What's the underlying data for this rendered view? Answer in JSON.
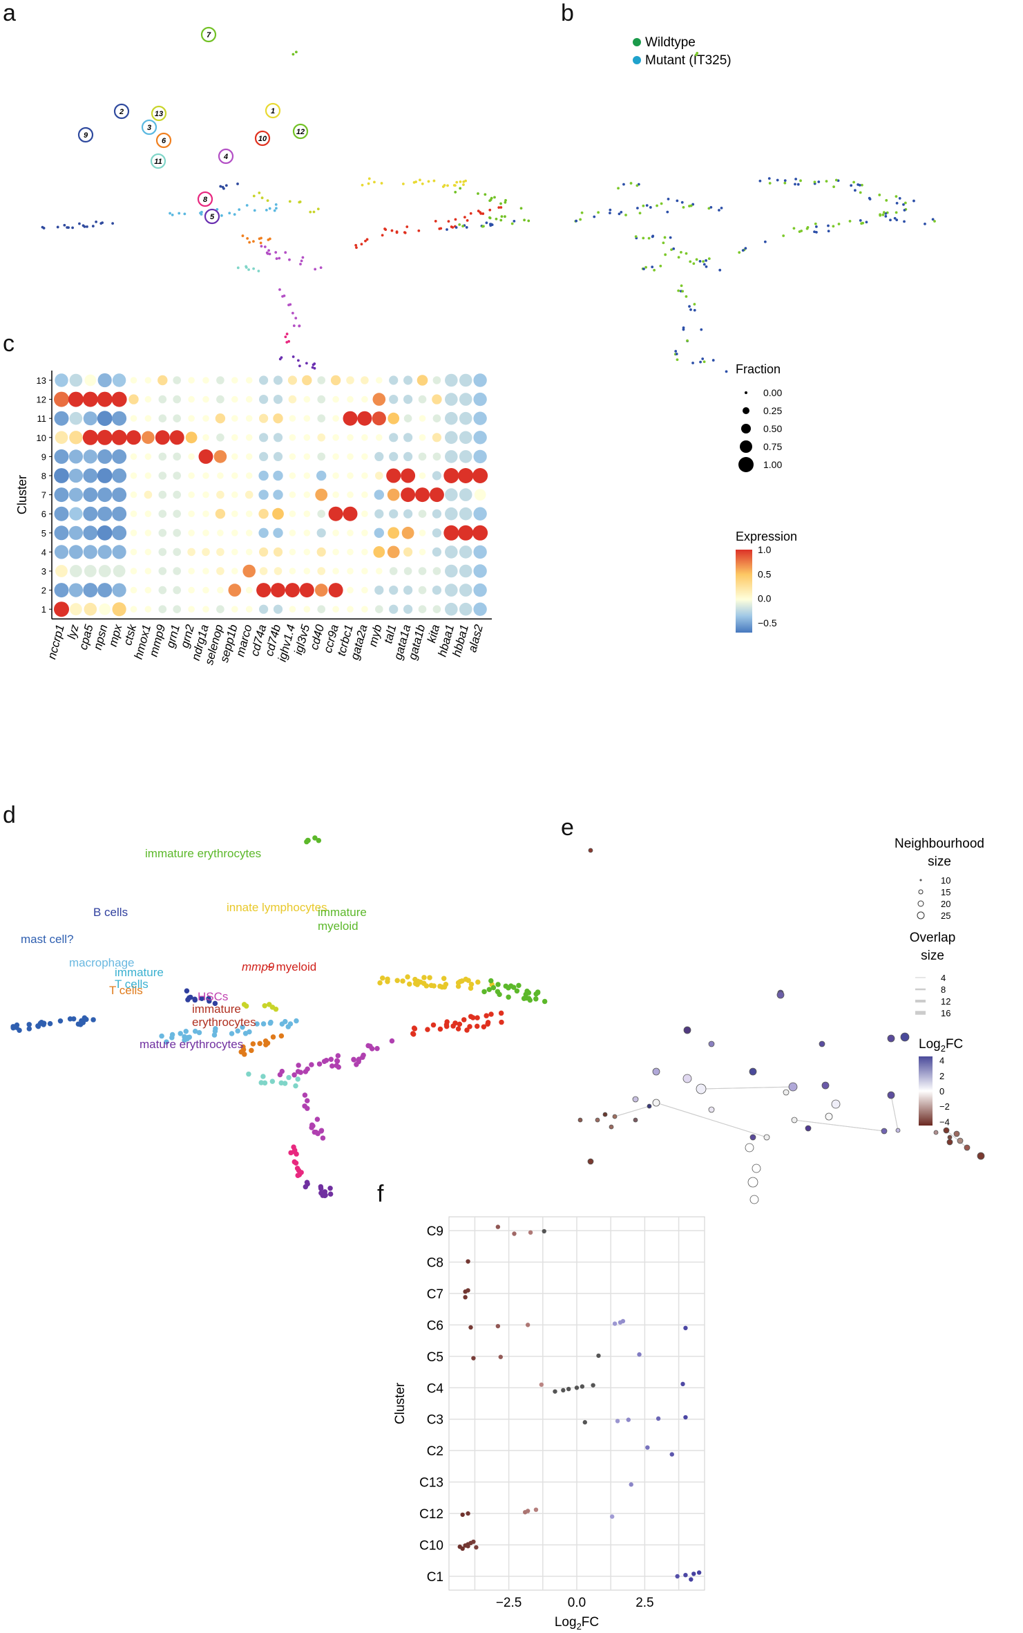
{
  "panels": {
    "a": {
      "letter": "a"
    },
    "b": {
      "letter": "b",
      "legend": [
        {
          "label": "Wildtype",
          "color": "#1a9a4a"
        },
        {
          "label": "Mutant (IT325)",
          "color": "#1fa2cc"
        }
      ]
    },
    "c": {
      "letter": "c"
    },
    "d": {
      "letter": "d"
    },
    "e": {
      "letter": "e"
    },
    "f": {
      "letter": "f"
    }
  },
  "chart_data": [
    {
      "id": "a",
      "type": "scatter",
      "cluster_labels": [
        {
          "n": "1",
          "color": "#e8d932"
        },
        {
          "n": "2",
          "color": "#2f4a9e"
        },
        {
          "n": "3",
          "color": "#5ab8e0"
        },
        {
          "n": "4",
          "color": "#b34fc5"
        },
        {
          "n": "5",
          "color": "#6a2fb0"
        },
        {
          "n": "6",
          "color": "#f07f1e"
        },
        {
          "n": "7",
          "color": "#72c125"
        },
        {
          "n": "8",
          "color": "#e8287f"
        },
        {
          "n": "9",
          "color": "#2f4a9e"
        },
        {
          "n": "10",
          "color": "#e0311f"
        },
        {
          "n": "11",
          "color": "#7fd5c8"
        },
        {
          "n": "12",
          "color": "#72c125"
        },
        {
          "n": "13",
          "color": "#c8d42a"
        }
      ]
    },
    {
      "id": "b",
      "type": "scatter",
      "series": [
        {
          "name": "Wildtype",
          "color": "#7cc82a"
        },
        {
          "name": "Mutant (IT325)",
          "color": "#2c4fa8"
        }
      ]
    },
    {
      "id": "c",
      "type": "dotplot",
      "ylabel": "Cluster",
      "clusters": [
        "13",
        "12",
        "11",
        "10",
        "9",
        "8",
        "7",
        "6",
        "5",
        "4",
        "3",
        "2",
        "1"
      ],
      "genes": [
        "nccrp1",
        "lyz",
        "cpa5",
        "npsn",
        "mpx",
        "ctsk",
        "hmox1",
        "mmp9",
        "grn1",
        "grn2",
        "ndrg1a",
        "selenop",
        "sepp1b",
        "marco",
        "cd74a",
        "cd74b",
        "ighv1.4",
        "igl3v5",
        "cd40",
        "ccr9a",
        "tcrbc1",
        "gata2a",
        "myb",
        "tal1",
        "gata1a",
        "gata1b",
        "kita",
        "hbaa1",
        "hbba1",
        "alas2"
      ],
      "expression": [
        [
          -0.3,
          -0.2,
          0.0,
          -0.4,
          -0.3,
          0.0,
          0.0,
          0.3,
          -0.1,
          0.0,
          0.0,
          -0.1,
          0.0,
          0.0,
          -0.2,
          -0.2,
          0.2,
          0.3,
          -0.1,
          0.3,
          0.1,
          0.1,
          0.0,
          -0.2,
          -0.2,
          0.4,
          -0.1,
          -0.2,
          -0.2,
          -0.3
        ],
        [
          0.8,
          1.0,
          1.0,
          1.0,
          1.0,
          0.3,
          0.0,
          -0.1,
          -0.1,
          0.0,
          0.0,
          -0.1,
          0.0,
          0.0,
          -0.2,
          -0.2,
          0.1,
          0.0,
          -0.1,
          0.0,
          0.0,
          0.0,
          0.7,
          -0.2,
          -0.2,
          -0.1,
          0.3,
          -0.2,
          -0.2,
          -0.3
        ],
        [
          -0.5,
          -0.2,
          -0.4,
          -0.6,
          -0.5,
          0.0,
          0.0,
          -0.1,
          -0.1,
          0.0,
          0.0,
          0.3,
          0.0,
          0.0,
          0.2,
          0.3,
          0.0,
          0.0,
          -0.1,
          0.0,
          1.0,
          1.0,
          0.9,
          0.5,
          -0.1,
          0.0,
          -0.1,
          -0.2,
          -0.2,
          -0.3
        ],
        [
          0.2,
          0.3,
          1.0,
          1.0,
          1.0,
          1.0,
          0.7,
          1.0,
          1.0,
          0.5,
          0.0,
          -0.1,
          0.0,
          0.0,
          -0.2,
          -0.2,
          0.0,
          0.0,
          0.1,
          0.0,
          0.0,
          0.0,
          0.0,
          -0.2,
          -0.2,
          0.0,
          0.2,
          -0.2,
          -0.2,
          -0.3
        ],
        [
          -0.5,
          -0.4,
          -0.4,
          -0.5,
          -0.5,
          0.0,
          0.0,
          -0.1,
          -0.1,
          0.0,
          1.0,
          0.7,
          0.0,
          0.0,
          -0.2,
          -0.2,
          0.0,
          0.0,
          -0.1,
          0.0,
          0.0,
          0.0,
          -0.2,
          -0.2,
          -0.2,
          -0.1,
          -0.1,
          -0.2,
          -0.2,
          -0.3
        ],
        [
          -0.6,
          -0.4,
          -0.5,
          -0.6,
          -0.5,
          0.0,
          0.0,
          -0.1,
          -0.1,
          0.0,
          0.0,
          0.0,
          0.0,
          0.0,
          -0.3,
          -0.3,
          0.0,
          0.0,
          -0.3,
          0.0,
          0.0,
          0.0,
          0.1,
          1.0,
          1.0,
          0.0,
          -0.2,
          1.0,
          1.0,
          1.0
        ],
        [
          -0.5,
          -0.4,
          -0.5,
          -0.5,
          -0.5,
          0.0,
          0.1,
          -0.1,
          -0.1,
          0.0,
          0.0,
          0.1,
          0.0,
          0.1,
          -0.3,
          -0.3,
          0.0,
          0.0,
          0.6,
          0.0,
          0.0,
          0.0,
          -0.3,
          0.6,
          1.0,
          1.0,
          1.0,
          -0.2,
          -0.2,
          0.0
        ],
        [
          -0.5,
          -0.3,
          -0.5,
          -0.5,
          -0.5,
          0.0,
          0.0,
          -0.1,
          -0.1,
          0.0,
          0.0,
          0.3,
          0.0,
          0.0,
          0.3,
          0.5,
          0.0,
          0.0,
          -0.1,
          1.0,
          1.0,
          0.0,
          -0.2,
          -0.2,
          -0.2,
          -0.1,
          -0.2,
          -0.2,
          -0.2,
          -0.3
        ],
        [
          -0.5,
          -0.4,
          -0.5,
          -0.6,
          -0.5,
          0.0,
          0.0,
          -0.1,
          -0.1,
          0.0,
          0.0,
          0.0,
          0.0,
          0.0,
          -0.3,
          -0.3,
          0.0,
          0.0,
          -0.2,
          0.0,
          0.0,
          0.0,
          -0.3,
          0.5,
          0.6,
          0.0,
          -0.2,
          1.0,
          1.0,
          1.0
        ],
        [
          -0.4,
          -0.4,
          -0.4,
          -0.4,
          -0.4,
          0.0,
          0.0,
          -0.1,
          -0.1,
          0.1,
          0.1,
          0.1,
          0.0,
          0.0,
          0.2,
          0.2,
          0.0,
          0.0,
          0.2,
          0.0,
          0.0,
          0.0,
          0.5,
          0.6,
          0.2,
          0.0,
          -0.2,
          -0.2,
          -0.2,
          -0.3
        ],
        [
          0.1,
          -0.1,
          -0.1,
          -0.1,
          -0.1,
          0.0,
          0.0,
          -0.1,
          -0.1,
          0.0,
          0.0,
          0.1,
          0.0,
          0.7,
          0.1,
          0.1,
          0.0,
          0.0,
          0.1,
          0.0,
          0.0,
          0.0,
          0.0,
          -0.1,
          -0.1,
          -0.1,
          -0.1,
          -0.2,
          -0.2,
          -0.3
        ],
        [
          -0.5,
          -0.4,
          -0.5,
          -0.5,
          -0.4,
          0.0,
          0.0,
          -0.1,
          -0.1,
          0.0,
          0.0,
          0.0,
          0.7,
          0.0,
          1.0,
          1.0,
          1.0,
          1.0,
          0.7,
          1.0,
          0.0,
          0.0,
          -0.2,
          -0.2,
          -0.2,
          -0.1,
          -0.2,
          -0.2,
          -0.2,
          -0.3
        ],
        [
          1.0,
          0.1,
          0.2,
          0.0,
          0.4,
          0.0,
          0.0,
          -0.1,
          -0.1,
          0.0,
          0.0,
          -0.1,
          0.0,
          0.0,
          -0.2,
          -0.2,
          0.0,
          0.0,
          -0.1,
          0.0,
          0.0,
          0.0,
          -0.1,
          -0.2,
          -0.2,
          -0.1,
          -0.1,
          -0.2,
          -0.2,
          -0.3
        ]
      ],
      "fraction_legend": {
        "title": "Fraction",
        "values": [
          "0.00",
          "0.25",
          "0.50",
          "0.75",
          "1.00"
        ]
      },
      "expression_legend": {
        "title": "Expression",
        "ticks": [
          "1.0",
          "0.5",
          "0.0",
          "−0.5"
        ],
        "range": [
          -0.7,
          1.0
        ]
      }
    },
    {
      "id": "d",
      "type": "scatter",
      "annotations": [
        {
          "text": "immature erythrocytes",
          "color": "#5cb82a"
        },
        {
          "text": "innate lymphocytes",
          "color": "#e8c82a"
        },
        {
          "text": "immature",
          "color": "#5cb82a"
        },
        {
          "text": "myeloid",
          "color": "#5cb82a"
        },
        {
          "text": "B cells",
          "color": "#2f3f9e"
        },
        {
          "text": "mast cell?",
          "color": "#2f5fb0"
        },
        {
          "text": "macrophage",
          "color": "#6ab8e0"
        },
        {
          "text": "T cells",
          "color": "#e07a1a"
        },
        {
          "text": "immature",
          "color": "#3ab0d0"
        },
        {
          "text": "T cells",
          "color": "#3ab0d0"
        },
        {
          "text": "mmp9",
          "color": "#d0201a"
        },
        {
          "text": "+ myeloid",
          "color": "#d0201a"
        },
        {
          "text": "HSCs",
          "color": "#c040b0"
        },
        {
          "text": "immature",
          "color": "#b03020"
        },
        {
          "text": "erythrocytes",
          "color": "#b03020"
        },
        {
          "text": "mature erythrocytes",
          "color": "#7030a0"
        }
      ]
    },
    {
      "id": "e",
      "type": "network",
      "neighbourhood_legend": {
        "title_lines": [
          "Neighbourhood",
          "size"
        ],
        "values": [
          "10",
          "15",
          "20",
          "25"
        ]
      },
      "overlap_legend": {
        "title_lines": [
          "Overlap",
          "size"
        ],
        "values": [
          "4",
          "8",
          "12",
          "16"
        ]
      },
      "logfc_legend": {
        "title": "Log",
        "title_sub": "2",
        "title_suffix": "FC",
        "ticks": [
          "4",
          "2",
          "0",
          "−2",
          "−4"
        ],
        "range": [
          -4.5,
          4.5
        ]
      }
    },
    {
      "id": "f",
      "type": "scatter",
      "xlabel": "Log",
      "xlabel_sub": "2",
      "xlabel_suffix": "FC",
      "ylabel": "Cluster",
      "xlim": [
        -4.7,
        4.7
      ],
      "xticks": [
        "−2.5",
        "0.0",
        "2.5"
      ],
      "xtick_values": [
        -2.5,
        0,
        2.5
      ],
      "categories": [
        "C9",
        "C8",
        "C7",
        "C6",
        "C5",
        "C4",
        "C3",
        "C2",
        "C13",
        "C12",
        "C10",
        "C1"
      ],
      "points": [
        {
          "c": "C9",
          "x": -2.9
        },
        {
          "c": "C9",
          "x": -2.3
        },
        {
          "c": "C9",
          "x": -1.7
        },
        {
          "c": "C9",
          "x": -1.2
        },
        {
          "c": "C8",
          "x": -4.0
        },
        {
          "c": "C7",
          "x": -4.1
        },
        {
          "c": "C7",
          "x": -4.0
        },
        {
          "c": "C7",
          "x": -4.1
        },
        {
          "c": "C6",
          "x": -3.9
        },
        {
          "c": "C6",
          "x": -2.9
        },
        {
          "c": "C6",
          "x": -1.8
        },
        {
          "c": "C6",
          "x": 1.4
        },
        {
          "c": "C6",
          "x": 1.6
        },
        {
          "c": "C6",
          "x": 1.7
        },
        {
          "c": "C6",
          "x": 4.0
        },
        {
          "c": "C5",
          "x": -3.8
        },
        {
          "c": "C5",
          "x": -2.8
        },
        {
          "c": "C5",
          "x": 0.8
        },
        {
          "c": "C5",
          "x": 2.3
        },
        {
          "c": "C4",
          "x": -1.3
        },
        {
          "c": "C4",
          "x": -0.8
        },
        {
          "c": "C4",
          "x": -0.5
        },
        {
          "c": "C4",
          "x": -0.3
        },
        {
          "c": "C4",
          "x": 0
        },
        {
          "c": "C4",
          "x": 0.2
        },
        {
          "c": "C4",
          "x": 0.6
        },
        {
          "c": "C4",
          "x": 3.9
        },
        {
          "c": "C3",
          "x": 0.3
        },
        {
          "c": "C3",
          "x": 1.5
        },
        {
          "c": "C3",
          "x": 1.9
        },
        {
          "c": "C3",
          "x": 3.0
        },
        {
          "c": "C3",
          "x": 4.0
        },
        {
          "c": "C2",
          "x": 2.6
        },
        {
          "c": "C2",
          "x": 3.5
        },
        {
          "c": "C13",
          "x": 2.0
        },
        {
          "c": "C12",
          "x": -4.2
        },
        {
          "c": "C12",
          "x": -4.0
        },
        {
          "c": "C12",
          "x": -1.9
        },
        {
          "c": "C12",
          "x": -1.8
        },
        {
          "c": "C12",
          "x": -1.5
        },
        {
          "c": "C12",
          "x": 1.3
        },
        {
          "c": "C10",
          "x": -4.3
        },
        {
          "c": "C10",
          "x": -4.1
        },
        {
          "c": "C10",
          "x": -4.0
        },
        {
          "c": "C10",
          "x": -3.9
        },
        {
          "c": "C10",
          "x": -3.8
        },
        {
          "c": "C10",
          "x": -4.2
        },
        {
          "c": "C10",
          "x": -3.7
        },
        {
          "c": "C10",
          "x": -4.0
        },
        {
          "c": "C1",
          "x": 3.7
        },
        {
          "c": "C1",
          "x": 4.0
        },
        {
          "c": "C1",
          "x": 4.3
        },
        {
          "c": "C1",
          "x": 4.5
        },
        {
          "c": "C1",
          "x": 4.2
        }
      ]
    }
  ]
}
